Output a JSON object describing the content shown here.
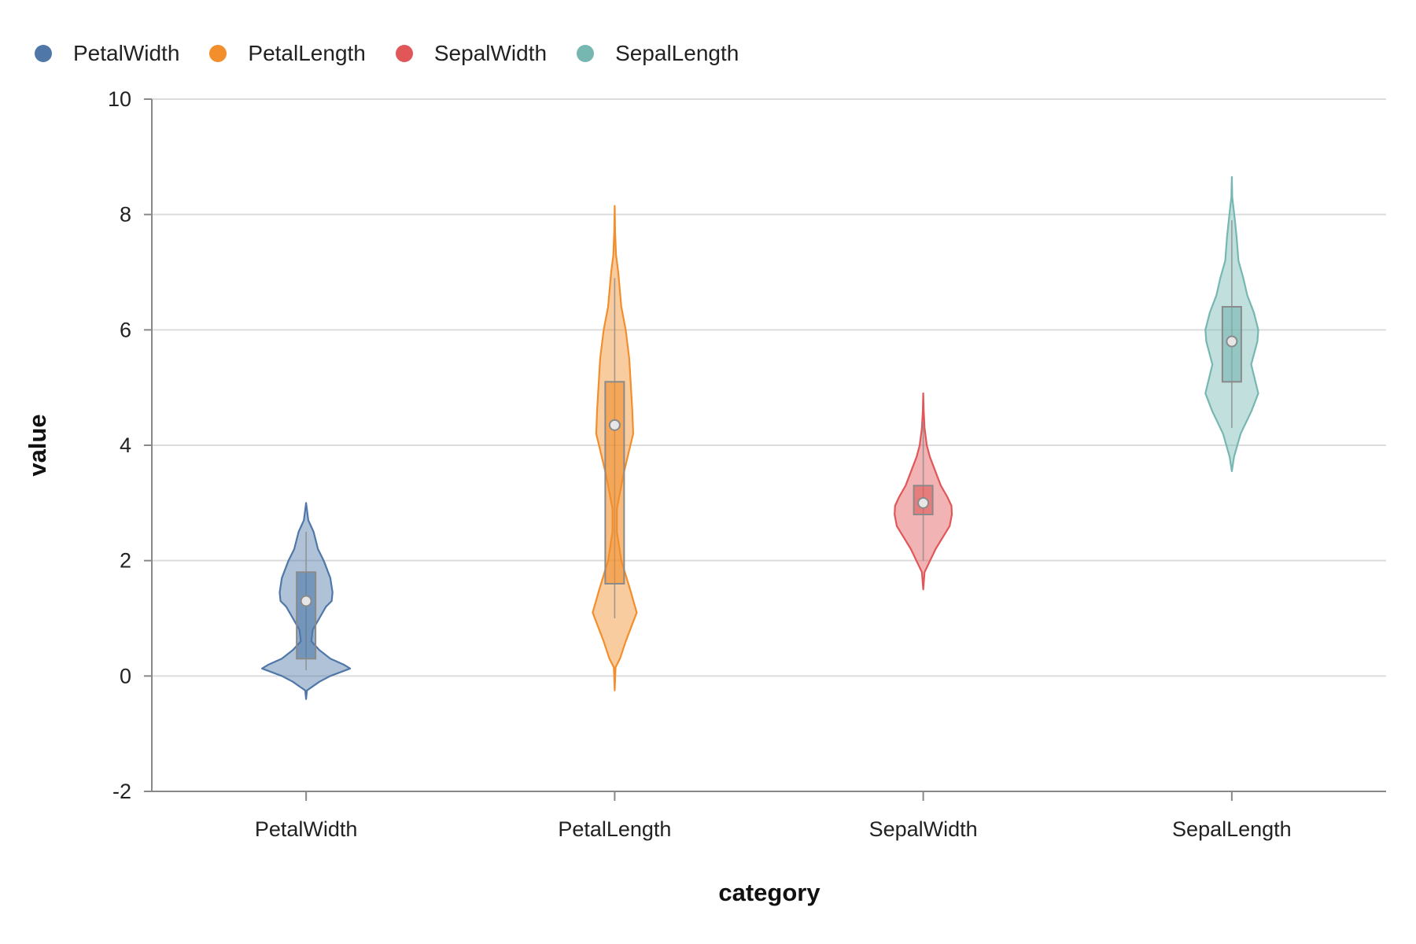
{
  "legend": {
    "items": [
      {
        "label": "PetalWidth",
        "color": "#4f78a8"
      },
      {
        "label": "PetalLength",
        "color": "#f28e2b"
      },
      {
        "label": "SepalWidth",
        "color": "#e15759"
      },
      {
        "label": "SepalLength",
        "color": "#76b7b2"
      }
    ]
  },
  "chart_data": {
    "type": "violin",
    "title": "",
    "xlabel": "category",
    "ylabel": "value",
    "ylim": [
      -2,
      10
    ],
    "yticks": [
      -2,
      0,
      2,
      4,
      6,
      8,
      10
    ],
    "grid": true,
    "legend_position": "top-left",
    "categories": [
      "PetalWidth",
      "PetalLength",
      "SepalWidth",
      "SepalLength"
    ],
    "series": [
      {
        "name": "PetalWidth",
        "color": "#4f78a8",
        "box": {
          "whisker_low": 0.1,
          "q1": 0.3,
          "median": 1.3,
          "q3": 1.8,
          "whisker_high": 2.5
        },
        "violin": {
          "min": -0.4,
          "max": 3.0,
          "profile": [
            [
              -0.4,
              0.0
            ],
            [
              -0.25,
              0.02
            ],
            [
              -0.1,
              0.3
            ],
            [
              0.0,
              0.55
            ],
            [
              0.13,
              1.0
            ],
            [
              0.2,
              0.85
            ],
            [
              0.3,
              0.55
            ],
            [
              0.45,
              0.3
            ],
            [
              0.6,
              0.12
            ],
            [
              0.8,
              0.15
            ],
            [
              1.0,
              0.3
            ],
            [
              1.2,
              0.45
            ],
            [
              1.3,
              0.58
            ],
            [
              1.45,
              0.6
            ],
            [
              1.7,
              0.55
            ],
            [
              2.0,
              0.4
            ],
            [
              2.2,
              0.27
            ],
            [
              2.5,
              0.17
            ],
            [
              2.7,
              0.05
            ],
            [
              3.0,
              0.0
            ]
          ]
        }
      },
      {
        "name": "PetalLength",
        "color": "#f28e2b",
        "box": {
          "whisker_low": 1.0,
          "q1": 1.6,
          "median": 4.35,
          "q3": 5.1,
          "whisker_high": 6.9
        },
        "violin": {
          "min": -0.25,
          "max": 8.15,
          "profile": [
            [
              -0.25,
              0.0
            ],
            [
              0.15,
              0.02
            ],
            [
              0.3,
              0.12
            ],
            [
              0.6,
              0.25
            ],
            [
              1.1,
              0.5
            ],
            [
              1.5,
              0.35
            ],
            [
              2.0,
              0.15
            ],
            [
              2.5,
              0.05
            ],
            [
              2.9,
              0.05
            ],
            [
              3.5,
              0.2
            ],
            [
              4.2,
              0.42
            ],
            [
              4.6,
              0.4
            ],
            [
              5.5,
              0.33
            ],
            [
              6.0,
              0.25
            ],
            [
              6.4,
              0.15
            ],
            [
              7.0,
              0.08
            ],
            [
              7.3,
              0.03
            ],
            [
              7.7,
              0.01
            ],
            [
              8.15,
              0.0
            ]
          ]
        }
      },
      {
        "name": "SepalWidth",
        "color": "#e15759",
        "box": {
          "whisker_low": 2.0,
          "q1": 2.8,
          "median": 3.0,
          "q3": 3.3,
          "whisker_high": 4.4
        },
        "violin": {
          "min": 1.5,
          "max": 4.9,
          "profile": [
            [
              1.5,
              0.0
            ],
            [
              1.8,
              0.03
            ],
            [
              2.2,
              0.28
            ],
            [
              2.6,
              0.6
            ],
            [
              2.8,
              0.65
            ],
            [
              2.95,
              0.64
            ],
            [
              3.1,
              0.55
            ],
            [
              3.3,
              0.4
            ],
            [
              3.5,
              0.3
            ],
            [
              3.8,
              0.15
            ],
            [
              4.0,
              0.08
            ],
            [
              4.3,
              0.03
            ],
            [
              4.6,
              0.01
            ],
            [
              4.9,
              0.0
            ]
          ]
        }
      },
      {
        "name": "SepalLength",
        "color": "#76b7b2",
        "box": {
          "whisker_low": 4.3,
          "q1": 5.1,
          "median": 5.8,
          "q3": 6.4,
          "whisker_high": 7.9
        },
        "violin": {
          "min": 3.55,
          "max": 8.65,
          "profile": [
            [
              3.55,
              0.0
            ],
            [
              3.8,
              0.05
            ],
            [
              4.2,
              0.2
            ],
            [
              4.6,
              0.45
            ],
            [
              4.9,
              0.6
            ],
            [
              5.4,
              0.44
            ],
            [
              5.8,
              0.58
            ],
            [
              6.0,
              0.6
            ],
            [
              6.3,
              0.5
            ],
            [
              6.6,
              0.35
            ],
            [
              6.9,
              0.26
            ],
            [
              7.2,
              0.15
            ],
            [
              7.6,
              0.11
            ],
            [
              7.9,
              0.07
            ],
            [
              8.1,
              0.04
            ],
            [
              8.3,
              0.01
            ],
            [
              8.65,
              0.0
            ]
          ]
        }
      }
    ]
  }
}
